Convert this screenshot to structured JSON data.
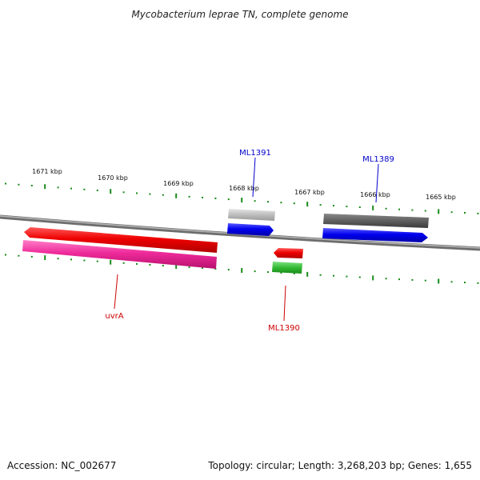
{
  "title": "Mycobacterium leprae TN, complete genome",
  "scale_labels": [
    "1671 kbp",
    "1670 kbp",
    "1669 kbp",
    "1668 kbp",
    "1667 kbp",
    "1666 kbp",
    "1665 kbp"
  ],
  "genes": {
    "ml1391": "ML1391",
    "ml1389": "ML1389",
    "uvra": "uvrA",
    "ml1390": "ML1390"
  },
  "footer": {
    "accession": "Accession: NC_002677",
    "summary": "Topology: circular; Length: 3,268,203 bp; Genes: 1,655"
  },
  "colors": {
    "backbone": "#8a8a8a",
    "ticks": "#1a8a1a",
    "cds_forward": "#0000ee",
    "cds_reverse": "#ee0000",
    "rna_pink": "#ee2a9a",
    "gene_gray": "#bdbdbd",
    "gene_dark": "#5f5f5f",
    "gene_green": "#33bb33",
    "label_blue": "#0000cc",
    "label_red": "#cc0000"
  }
}
